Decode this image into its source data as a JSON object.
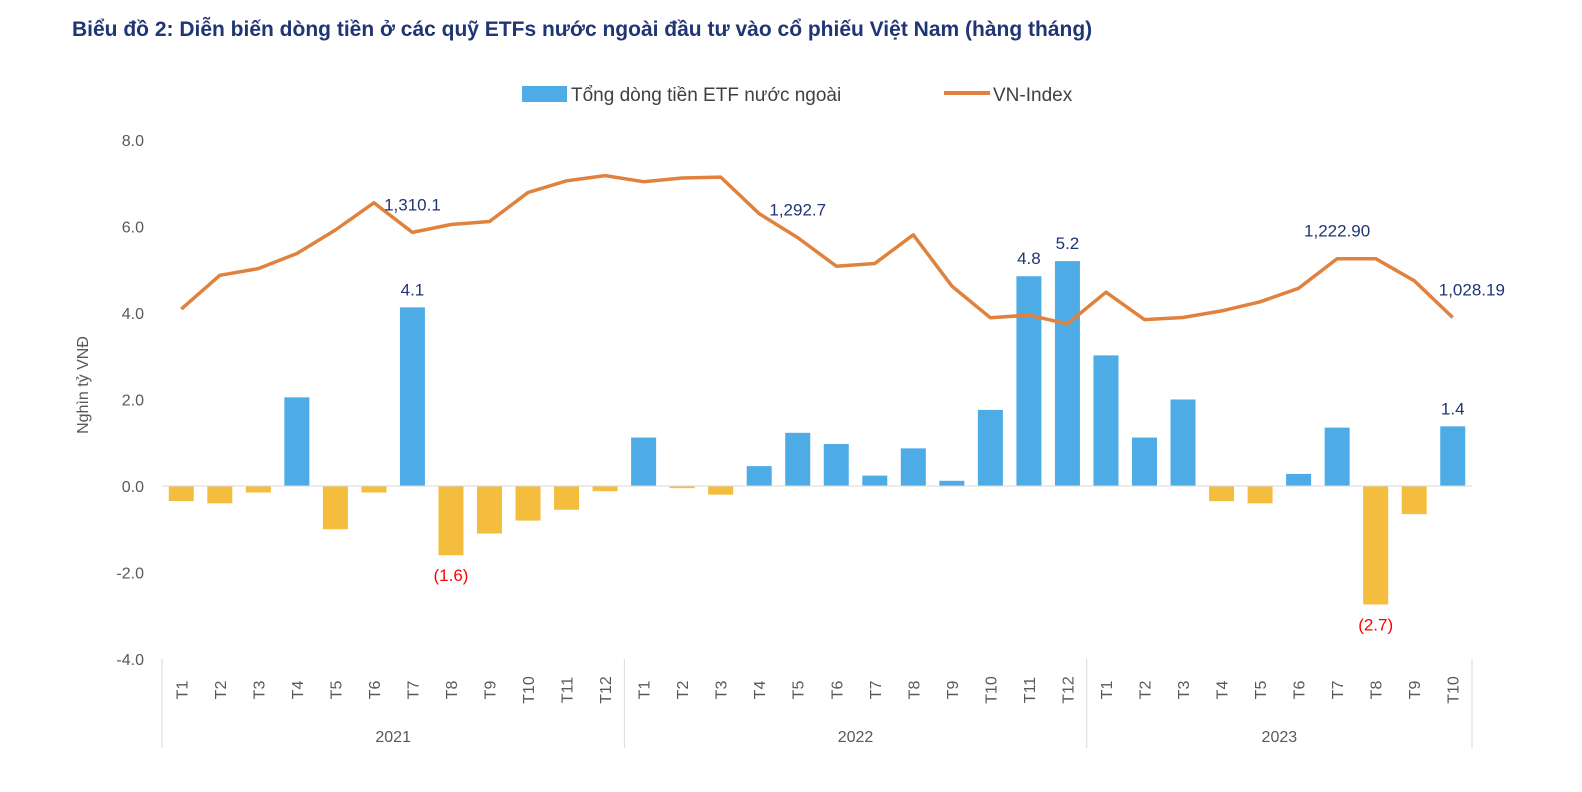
{
  "title": "Biểu đồ 2: Diễn biến dòng tiền ở các quỹ ETFs nước ngoài đầu tư vào cổ phiếu Việt Nam (hàng tháng)",
  "chart_data": {
    "type": "bar+line",
    "title": "Biểu đồ 2: Diễn biến dòng tiền ở các quỹ ETFs nước ngoài đầu tư vào cổ phiếu Việt Nam (hàng tháng)",
    "ylabel": "Nghìn tỷ VNĐ",
    "ylim": [
      -4,
      8
    ],
    "yticks": [
      "8.0",
      "6.0",
      "4.0",
      "2.0",
      "0.0",
      "-2.0",
      "-4.0"
    ],
    "ytick_values": [
      8,
      6,
      4,
      2,
      0,
      -2,
      -4
    ],
    "grid": false,
    "legend_position": "top-center",
    "year_groups": [
      {
        "label": "2021",
        "count": 12
      },
      {
        "label": "2022",
        "count": 12
      },
      {
        "label": "2023",
        "count": 10
      }
    ],
    "categories": [
      "T1",
      "T2",
      "T3",
      "T4",
      "T5",
      "T6",
      "T7",
      "T8",
      "T9",
      "T10",
      "T11",
      "T12",
      "T1",
      "T2",
      "T3",
      "T4",
      "T5",
      "T6",
      "T7",
      "T8",
      "T9",
      "T10",
      "T11",
      "T12",
      "T1",
      "T2",
      "T3",
      "T4",
      "T5",
      "T6",
      "T7",
      "T8",
      "T9",
      "T10"
    ],
    "series": [
      {
        "name": "Tổng dòng tiền ETF nước ngoài",
        "type": "bar",
        "color_positive": "#4dabe6",
        "color_negative": "#f5bd3e",
        "values": [
          -0.35,
          -0.4,
          -0.15,
          2.05,
          -1.0,
          -0.15,
          4.13,
          -1.6,
          -1.1,
          -0.8,
          -0.55,
          -0.12,
          1.12,
          -0.05,
          -0.2,
          0.46,
          1.23,
          0.97,
          0.24,
          0.87,
          0.12,
          1.76,
          4.85,
          5.2,
          3.02,
          1.12,
          2.0,
          -0.35,
          -0.4,
          0.28,
          1.35,
          -2.74,
          -0.65,
          1.38
        ]
      },
      {
        "name": "VN-Index",
        "type": "line",
        "color": "#e0823d",
        "values": [
          1056,
          1168,
          1190,
          1240,
          1318,
          1408,
          1310.1,
          1336,
          1346,
          1442,
          1481,
          1498,
          1478,
          1490,
          1493,
          1372,
          1292.7,
          1198,
          1207,
          1302,
          1132,
          1027,
          1036,
          1007.1,
          1112,
          1021.2,
          1028,
          1050,
          1080,
          1125,
          1222.9,
          1222.9,
          1150,
          1028.19
        ]
      }
    ],
    "data_labels": {
      "bar": [
        {
          "index": 6,
          "text": "4.1"
        },
        {
          "index": 7,
          "text": "(1.6)"
        },
        {
          "index": 22,
          "text": "4.8"
        },
        {
          "index": 23,
          "text": "5.2"
        },
        {
          "index": 31,
          "text": "(2.7)"
        },
        {
          "index": 33,
          "text": "1.4"
        }
      ],
      "line": [
        {
          "index": 6,
          "text": "1,310.1"
        },
        {
          "index": 16,
          "text": "1,292.7"
        },
        {
          "index": 30,
          "text": "1,222.90"
        },
        {
          "index": 33,
          "text": "1,028.19"
        }
      ]
    }
  }
}
